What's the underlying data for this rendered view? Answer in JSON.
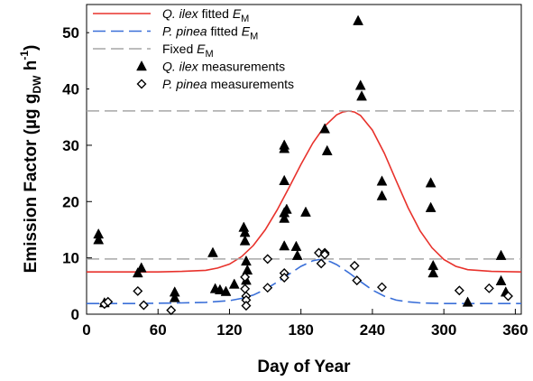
{
  "chart_data": {
    "type": "scatter",
    "xlabel": "Day of Year",
    "ylabel": {
      "prefix": "Emission Factor (µg g",
      "sub": "DW",
      "mid": " h",
      "sup": "-1",
      "suffix": ")",
      "sup1": "-1"
    },
    "xlim": [
      0,
      365
    ],
    "ylim": [
      0,
      55
    ],
    "xticks": [
      0,
      60,
      120,
      180,
      240,
      300,
      360
    ],
    "yticks": [
      0,
      10,
      20,
      30,
      40,
      50
    ],
    "grid": false,
    "legend_position": "top-left",
    "series": [
      {
        "name": "Q. ilex fitted E_M",
        "legend": {
          "italic": "Q. ilex",
          "plain": " fitted ",
          "em": "E",
          "sub": "M"
        },
        "kind": "line",
        "color": "#e8322c",
        "dash": "solid",
        "x": [
          0,
          20,
          40,
          60,
          80,
          100,
          110,
          120,
          130,
          140,
          150,
          160,
          170,
          180,
          190,
          200,
          210,
          215,
          220,
          225,
          230,
          240,
          250,
          260,
          270,
          280,
          290,
          300,
          310,
          320,
          340,
          365
        ],
        "y": [
          7.5,
          7.5,
          7.5,
          7.5,
          7.6,
          7.8,
          8.2,
          8.9,
          10.2,
          12.2,
          15.0,
          18.5,
          22.5,
          26.6,
          30.4,
          33.4,
          35.4,
          35.9,
          36.1,
          35.9,
          35.3,
          32.7,
          28.6,
          23.7,
          18.9,
          14.8,
          11.8,
          9.7,
          8.5,
          7.9,
          7.6,
          7.5
        ]
      },
      {
        "name": "P. pinea fitted E_M",
        "legend": {
          "italic": "P. pinea",
          "plain": " fitted ",
          "em": "E",
          "sub": "M"
        },
        "kind": "line",
        "color": "#3a6fd8",
        "dash": "14,6",
        "x": [
          0,
          40,
          80,
          100,
          120,
          130,
          140,
          150,
          160,
          170,
          180,
          190,
          195,
          200,
          205,
          210,
          220,
          230,
          240,
          250,
          260,
          270,
          280,
          300,
          330,
          365
        ],
        "y": [
          1.9,
          1.9,
          2.0,
          2.1,
          2.4,
          2.8,
          3.4,
          4.4,
          5.7,
          7.1,
          8.5,
          9.5,
          9.7,
          9.6,
          9.3,
          8.8,
          7.4,
          5.8,
          4.3,
          3.2,
          2.5,
          2.2,
          2.0,
          1.9,
          1.9,
          1.9
        ]
      },
      {
        "name": "Fixed E_M",
        "legend": {
          "italic": "",
          "plain": "Fixed ",
          "em": "E",
          "sub": "M"
        },
        "kind": "hlines",
        "color": "#a6a6a6",
        "dash": "14,6",
        "y": [
          36.1,
          9.8
        ]
      },
      {
        "name": "Q. ilex measurements",
        "legend": {
          "italic": "Q. ilex",
          "plain": " measurements"
        },
        "kind": "triangle",
        "color": "#000000",
        "points": [
          [
            10,
            14.2
          ],
          [
            10,
            13.2
          ],
          [
            15,
            2.0
          ],
          [
            43,
            7.3
          ],
          [
            46,
            8.2
          ],
          [
            74,
            3.9
          ],
          [
            74,
            2.9
          ],
          [
            106,
            10.9
          ],
          [
            108,
            4.5
          ],
          [
            112,
            4.3
          ],
          [
            117,
            4.0
          ],
          [
            124,
            5.3
          ],
          [
            132,
            15.4
          ],
          [
            133,
            14.5
          ],
          [
            133,
            13.0
          ],
          [
            134,
            9.4
          ],
          [
            134,
            6.0
          ],
          [
            135,
            7.8
          ],
          [
            166,
            30.0
          ],
          [
            166,
            29.4
          ],
          [
            166,
            23.7
          ],
          [
            166,
            18.0
          ],
          [
            166,
            17.0
          ],
          [
            166,
            12.1
          ],
          [
            168,
            18.6
          ],
          [
            176,
            12.0
          ],
          [
            177,
            10.4
          ],
          [
            184,
            18.1
          ],
          [
            200,
            32.9
          ],
          [
            202,
            29.0
          ],
          [
            228,
            52.1
          ],
          [
            230,
            40.6
          ],
          [
            231,
            38.7
          ],
          [
            248,
            23.6
          ],
          [
            248,
            21.0
          ],
          [
            289,
            23.3
          ],
          [
            289,
            18.9
          ],
          [
            291,
            8.6
          ],
          [
            291,
            7.3
          ],
          [
            320,
            2.1
          ],
          [
            348,
            10.4
          ],
          [
            348,
            5.9
          ],
          [
            352,
            3.9
          ]
        ]
      },
      {
        "name": "P. pinea measurements",
        "legend": {
          "italic": "P. pinea",
          "plain": " measurements"
        },
        "kind": "diamond",
        "color": "#000000",
        "points": [
          [
            15,
            1.8
          ],
          [
            18,
            2.2
          ],
          [
            43,
            4.1
          ],
          [
            48,
            1.6
          ],
          [
            71,
            0.7
          ],
          [
            133,
            6.6
          ],
          [
            133,
            4.5
          ],
          [
            134,
            3.2
          ],
          [
            134,
            2.5
          ],
          [
            134,
            1.5
          ],
          [
            152,
            9.8
          ],
          [
            152,
            4.7
          ],
          [
            166,
            7.3
          ],
          [
            166,
            6.5
          ],
          [
            195,
            10.9
          ],
          [
            197,
            9.0
          ],
          [
            200,
            10.9
          ],
          [
            200,
            10.6
          ],
          [
            225,
            8.6
          ],
          [
            227,
            6.0
          ],
          [
            248,
            4.8
          ],
          [
            313,
            4.2
          ],
          [
            338,
            4.6
          ],
          [
            354,
            3.2
          ]
        ]
      }
    ]
  }
}
